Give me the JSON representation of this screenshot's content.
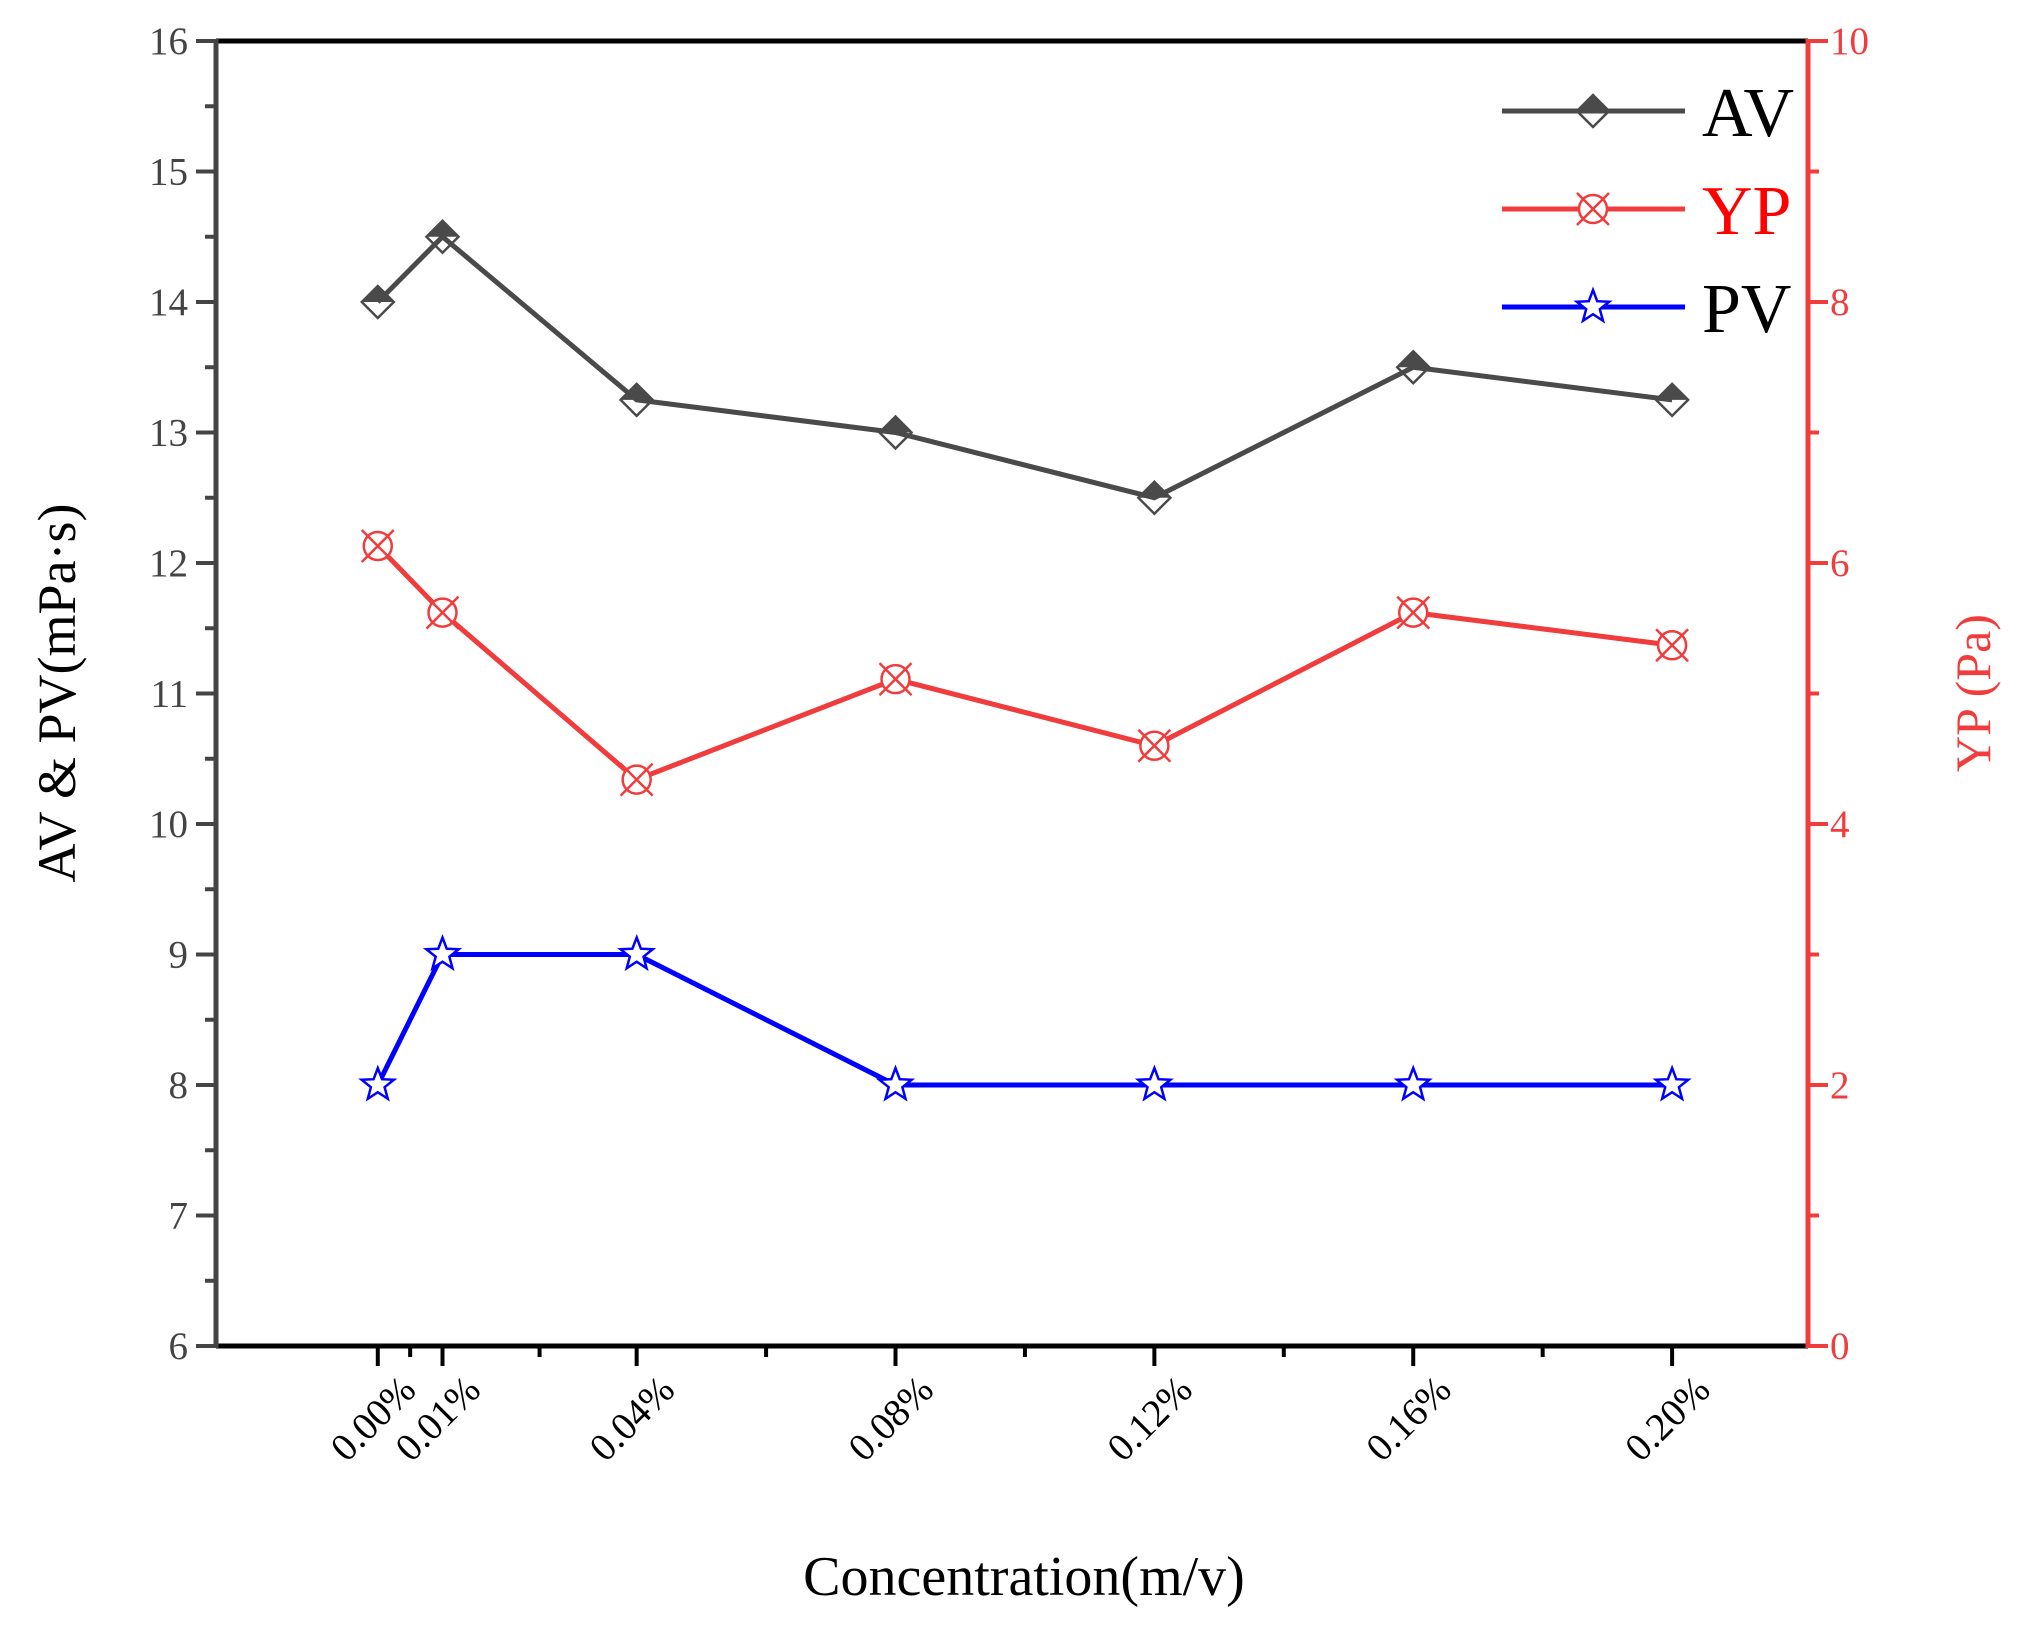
{
  "chart_data": {
    "type": "line",
    "title": "",
    "xlabel": "Concentration(m/v)",
    "ylabel": "AV & PV(mPa·s)",
    "y2label": "YP (Pa)",
    "categories": [
      "0.00%",
      "0.01%",
      "0.04%",
      "0.08%",
      "0.12%",
      "0.16%",
      "0.20%"
    ],
    "x": [
      0.0,
      0.01,
      0.04,
      0.08,
      0.12,
      0.16,
      0.2
    ],
    "xlim": [
      -0.025,
      0.221
    ],
    "ylim": [
      6,
      16
    ],
    "y2lim": [
      0,
      10
    ],
    "yticks": [
      "6",
      "7",
      "8",
      "9",
      "10",
      "11",
      "12",
      "13",
      "14",
      "15",
      "16"
    ],
    "y2ticks": [
      "0",
      "2",
      "4",
      "6",
      "8",
      "10"
    ],
    "legend_position": "top-right",
    "grid": false,
    "series": [
      {
        "name": "AV",
        "axis": "left",
        "color": "#4a4a4a",
        "marker": "half-filled-diamond",
        "values": [
          14.0,
          14.5,
          13.25,
          13.0,
          12.5,
          13.5,
          13.25
        ]
      },
      {
        "name": "YP",
        "axis": "right",
        "color": "#f03c3c",
        "marker": "crossed-circle",
        "values": [
          6.13,
          5.62,
          4.34,
          5.11,
          4.6,
          5.62,
          5.37
        ]
      },
      {
        "name": "PV",
        "axis": "left",
        "color": "#0000ff",
        "marker": "star",
        "values": [
          8,
          9,
          9,
          8,
          8,
          8,
          8
        ]
      }
    ]
  }
}
